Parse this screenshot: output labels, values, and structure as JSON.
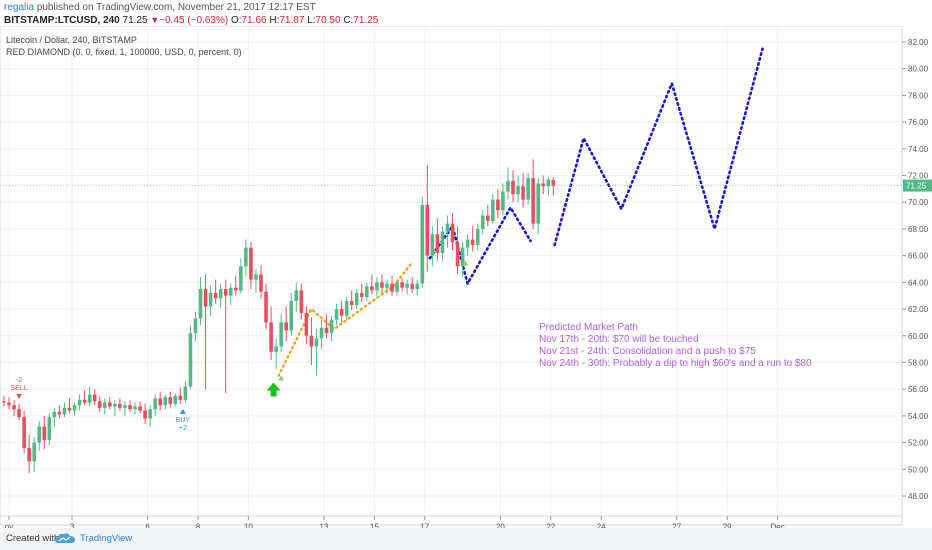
{
  "header": {
    "username": "regalia",
    "published_text": "published on TradingView.com, November 21, 2017 12:17 EST"
  },
  "ticker": {
    "symbol": "BITSTAMP:LTCUSD, 240",
    "last": "71.25",
    "change": "−0.45 (−0.63%)",
    "o_label": "O:",
    "o": "71.66",
    "h_label": "H:",
    "h": "71.87",
    "l_label": "L:",
    "l": "70.50",
    "c_label": "C:",
    "c": "71.25"
  },
  "chart_data": {
    "type": "candlestick",
    "title": "Litecoin / Dollar, 240, BITSTAMP",
    "indicator": "RED DIAMOND (0, 0, fixed, 1, 100000, USD, 0, percent, 0)",
    "ylim": [
      46.5,
      83.2
    ],
    "y_ticks": [
      "48.00",
      "50.00",
      "52.00",
      "54.00",
      "56.00",
      "58.00",
      "60.00",
      "62.00",
      "64.00",
      "66.00",
      "68.00",
      "70.00",
      "72.00",
      "74.00",
      "76.00",
      "78.00",
      "80.00",
      "82.00"
    ],
    "x_ticks": [
      "ov",
      "3",
      "6",
      "8",
      "10",
      "13",
      "15",
      "17",
      "20",
      "22",
      "24",
      "27",
      "29",
      "Dec"
    ],
    "x_tick_day": [
      0.5,
      3,
      6,
      8,
      10,
      13,
      15,
      17,
      20,
      22,
      24,
      27,
      29,
      31
    ],
    "candles": [
      {
        "d": 0.3,
        "o": 55.1,
        "h": 55.5,
        "l": 54.7,
        "c": 55.0
      },
      {
        "d": 0.5,
        "o": 55.0,
        "h": 55.4,
        "l": 54.5,
        "c": 54.8
      },
      {
        "d": 0.7,
        "o": 54.8,
        "h": 55.2,
        "l": 54.0,
        "c": 54.5
      },
      {
        "d": 0.9,
        "o": 54.5,
        "h": 54.9,
        "l": 53.7,
        "c": 53.9
      },
      {
        "d": 1.1,
        "o": 53.9,
        "h": 54.4,
        "l": 51.2,
        "c": 51.6
      },
      {
        "d": 1.3,
        "o": 51.6,
        "h": 52.6,
        "l": 49.7,
        "c": 50.6
      },
      {
        "d": 1.5,
        "o": 50.6,
        "h": 52.4,
        "l": 49.8,
        "c": 52.0
      },
      {
        "d": 1.7,
        "o": 52.0,
        "h": 53.6,
        "l": 51.4,
        "c": 53.2
      },
      {
        "d": 1.9,
        "o": 53.2,
        "h": 54.0,
        "l": 51.5,
        "c": 52.2
      },
      {
        "d": 2.1,
        "o": 52.2,
        "h": 54.2,
        "l": 51.8,
        "c": 53.9
      },
      {
        "d": 2.3,
        "o": 53.9,
        "h": 54.6,
        "l": 53.2,
        "c": 54.3
      },
      {
        "d": 2.5,
        "o": 54.3,
        "h": 54.8,
        "l": 53.8,
        "c": 54.1
      },
      {
        "d": 2.7,
        "o": 54.1,
        "h": 55.0,
        "l": 53.9,
        "c": 54.6
      },
      {
        "d": 2.9,
        "o": 54.6,
        "h": 55.3,
        "l": 54.2,
        "c": 54.4
      },
      {
        "d": 3.1,
        "o": 54.4,
        "h": 55.0,
        "l": 54.0,
        "c": 54.8
      },
      {
        "d": 3.3,
        "o": 54.8,
        "h": 55.6,
        "l": 54.4,
        "c": 55.2
      },
      {
        "d": 3.5,
        "o": 55.2,
        "h": 55.9,
        "l": 54.8,
        "c": 55.0
      },
      {
        "d": 3.7,
        "o": 55.0,
        "h": 56.2,
        "l": 54.7,
        "c": 55.6
      },
      {
        "d": 3.9,
        "o": 55.6,
        "h": 56.0,
        "l": 54.8,
        "c": 55.1
      },
      {
        "d": 4.1,
        "o": 55.1,
        "h": 55.5,
        "l": 54.3,
        "c": 54.6
      },
      {
        "d": 4.3,
        "o": 54.6,
        "h": 55.3,
        "l": 54.1,
        "c": 55.0
      },
      {
        "d": 4.5,
        "o": 55.0,
        "h": 55.4,
        "l": 54.5,
        "c": 54.7
      },
      {
        "d": 4.7,
        "o": 54.7,
        "h": 55.2,
        "l": 54.0,
        "c": 54.9
      },
      {
        "d": 4.9,
        "o": 54.9,
        "h": 55.3,
        "l": 54.4,
        "c": 54.6
      },
      {
        "d": 5.1,
        "o": 54.6,
        "h": 55.1,
        "l": 54.0,
        "c": 54.8
      },
      {
        "d": 5.3,
        "o": 54.8,
        "h": 55.2,
        "l": 54.3,
        "c": 54.5
      },
      {
        "d": 5.5,
        "o": 54.5,
        "h": 55.0,
        "l": 54.1,
        "c": 54.7
      },
      {
        "d": 5.7,
        "o": 54.7,
        "h": 55.1,
        "l": 54.2,
        "c": 54.4
      },
      {
        "d": 5.9,
        "o": 54.4,
        "h": 54.9,
        "l": 53.4,
        "c": 53.8
      },
      {
        "d": 6.1,
        "o": 53.8,
        "h": 54.8,
        "l": 53.2,
        "c": 54.5
      },
      {
        "d": 6.3,
        "o": 54.5,
        "h": 55.6,
        "l": 54.0,
        "c": 55.3
      },
      {
        "d": 6.5,
        "o": 55.3,
        "h": 55.8,
        "l": 54.4,
        "c": 54.8
      },
      {
        "d": 6.7,
        "o": 54.8,
        "h": 55.6,
        "l": 54.5,
        "c": 55.4
      },
      {
        "d": 6.9,
        "o": 55.4,
        "h": 55.8,
        "l": 54.6,
        "c": 54.9
      },
      {
        "d": 7.1,
        "o": 54.9,
        "h": 55.7,
        "l": 54.7,
        "c": 55.5
      },
      {
        "d": 7.3,
        "o": 55.5,
        "h": 56.1,
        "l": 54.9,
        "c": 55.2
      },
      {
        "d": 7.5,
        "o": 55.2,
        "h": 56.6,
        "l": 55.0,
        "c": 56.2
      },
      {
        "d": 7.7,
        "o": 56.2,
        "h": 60.8,
        "l": 56.0,
        "c": 60.2
      },
      {
        "d": 7.9,
        "o": 60.2,
        "h": 61.8,
        "l": 59.6,
        "c": 61.3
      },
      {
        "d": 8.1,
        "o": 61.3,
        "h": 64.4,
        "l": 60.8,
        "c": 63.5
      },
      {
        "d": 8.3,
        "o": 63.5,
        "h": 64.6,
        "l": 56.0,
        "c": 62.2
      },
      {
        "d": 8.5,
        "o": 62.2,
        "h": 63.8,
        "l": 61.5,
        "c": 63.2
      },
      {
        "d": 8.7,
        "o": 63.2,
        "h": 64.2,
        "l": 62.4,
        "c": 62.8
      },
      {
        "d": 8.9,
        "o": 62.8,
        "h": 63.9,
        "l": 62.1,
        "c": 63.5
      },
      {
        "d": 9.1,
        "o": 63.5,
        "h": 64.2,
        "l": 55.7,
        "c": 63.0
      },
      {
        "d": 9.3,
        "o": 63.0,
        "h": 63.9,
        "l": 62.3,
        "c": 63.6
      },
      {
        "d": 9.5,
        "o": 63.6,
        "h": 64.5,
        "l": 63.0,
        "c": 63.4
      },
      {
        "d": 9.7,
        "o": 63.4,
        "h": 65.8,
        "l": 63.2,
        "c": 65.2
      },
      {
        "d": 9.9,
        "o": 65.2,
        "h": 67.2,
        "l": 64.5,
        "c": 66.6
      },
      {
        "d": 10.1,
        "o": 66.6,
        "h": 67.0,
        "l": 63.5,
        "c": 64.2
      },
      {
        "d": 10.3,
        "o": 64.2,
        "h": 65.0,
        "l": 63.2,
        "c": 64.6
      },
      {
        "d": 10.5,
        "o": 64.6,
        "h": 65.3,
        "l": 62.8,
        "c": 63.3
      },
      {
        "d": 10.7,
        "o": 63.3,
        "h": 63.9,
        "l": 60.5,
        "c": 61.0
      },
      {
        "d": 10.9,
        "o": 61.0,
        "h": 62.2,
        "l": 58.2,
        "c": 58.8
      },
      {
        "d": 11.1,
        "o": 58.8,
        "h": 59.8,
        "l": 57.5,
        "c": 59.2
      },
      {
        "d": 11.3,
        "o": 59.2,
        "h": 61.6,
        "l": 58.8,
        "c": 61.0
      },
      {
        "d": 11.5,
        "o": 61.0,
        "h": 62.2,
        "l": 59.6,
        "c": 60.4
      },
      {
        "d": 11.7,
        "o": 60.4,
        "h": 63.2,
        "l": 60.0,
        "c": 62.6
      },
      {
        "d": 11.9,
        "o": 62.6,
        "h": 64.0,
        "l": 61.8,
        "c": 63.4
      },
      {
        "d": 12.1,
        "o": 63.4,
        "h": 63.9,
        "l": 61.2,
        "c": 61.7
      },
      {
        "d": 12.3,
        "o": 61.7,
        "h": 62.2,
        "l": 59.4,
        "c": 60.0
      },
      {
        "d": 12.5,
        "o": 60.0,
        "h": 61.4,
        "l": 57.8,
        "c": 59.2
      },
      {
        "d": 12.7,
        "o": 59.2,
        "h": 60.5,
        "l": 57.0,
        "c": 59.8
      },
      {
        "d": 12.9,
        "o": 59.8,
        "h": 61.2,
        "l": 59.0,
        "c": 60.6
      },
      {
        "d": 13.1,
        "o": 60.6,
        "h": 61.6,
        "l": 59.8,
        "c": 60.2
      },
      {
        "d": 13.3,
        "o": 60.2,
        "h": 61.5,
        "l": 59.6,
        "c": 61.2
      },
      {
        "d": 13.5,
        "o": 61.2,
        "h": 62.4,
        "l": 60.8,
        "c": 62.0
      },
      {
        "d": 13.7,
        "o": 62.0,
        "h": 62.6,
        "l": 61.0,
        "c": 61.5
      },
      {
        "d": 13.9,
        "o": 61.5,
        "h": 62.9,
        "l": 61.2,
        "c": 62.6
      },
      {
        "d": 14.1,
        "o": 62.6,
        "h": 63.4,
        "l": 61.9,
        "c": 62.3
      },
      {
        "d": 14.3,
        "o": 62.3,
        "h": 63.5,
        "l": 62.0,
        "c": 63.2
      },
      {
        "d": 14.5,
        "o": 63.2,
        "h": 63.9,
        "l": 62.5,
        "c": 62.9
      },
      {
        "d": 14.7,
        "o": 62.9,
        "h": 64.0,
        "l": 62.6,
        "c": 63.7
      },
      {
        "d": 14.9,
        "o": 63.7,
        "h": 64.6,
        "l": 63.1,
        "c": 63.4
      },
      {
        "d": 15.1,
        "o": 63.4,
        "h": 64.4,
        "l": 63.0,
        "c": 64.0
      },
      {
        "d": 15.3,
        "o": 64.0,
        "h": 64.6,
        "l": 63.2,
        "c": 63.6
      },
      {
        "d": 15.5,
        "o": 63.6,
        "h": 64.2,
        "l": 63.1,
        "c": 63.9
      },
      {
        "d": 15.7,
        "o": 63.9,
        "h": 64.5,
        "l": 63.0,
        "c": 63.3
      },
      {
        "d": 15.9,
        "o": 63.3,
        "h": 64.2,
        "l": 63.0,
        "c": 64.0
      },
      {
        "d": 16.1,
        "o": 64.0,
        "h": 64.3,
        "l": 63.3,
        "c": 63.6
      },
      {
        "d": 16.3,
        "o": 63.6,
        "h": 64.2,
        "l": 63.1,
        "c": 63.9
      },
      {
        "d": 16.5,
        "o": 63.9,
        "h": 64.4,
        "l": 63.2,
        "c": 63.5
      },
      {
        "d": 16.7,
        "o": 63.5,
        "h": 64.2,
        "l": 63.0,
        "c": 63.9
      },
      {
        "d": 16.9,
        "o": 63.9,
        "h": 70.4,
        "l": 63.6,
        "c": 69.8
      },
      {
        "d": 17.1,
        "o": 69.8,
        "h": 72.8,
        "l": 64.8,
        "c": 66.0
      },
      {
        "d": 17.3,
        "o": 66.0,
        "h": 68.2,
        "l": 65.2,
        "c": 67.6
      },
      {
        "d": 17.5,
        "o": 67.6,
        "h": 68.8,
        "l": 65.6,
        "c": 66.2
      },
      {
        "d": 17.7,
        "o": 66.2,
        "h": 68.2,
        "l": 65.6,
        "c": 67.8
      },
      {
        "d": 17.9,
        "o": 67.8,
        "h": 69.0,
        "l": 66.6,
        "c": 68.4
      },
      {
        "d": 18.1,
        "o": 68.4,
        "h": 69.2,
        "l": 66.4,
        "c": 67.0
      },
      {
        "d": 18.3,
        "o": 67.0,
        "h": 68.2,
        "l": 64.6,
        "c": 65.2
      },
      {
        "d": 18.5,
        "o": 65.2,
        "h": 67.0,
        "l": 64.4,
        "c": 66.6
      },
      {
        "d": 18.7,
        "o": 66.6,
        "h": 67.6,
        "l": 66.0,
        "c": 67.2
      },
      {
        "d": 18.9,
        "o": 67.2,
        "h": 68.2,
        "l": 66.3,
        "c": 66.8
      },
      {
        "d": 19.1,
        "o": 66.8,
        "h": 68.4,
        "l": 66.4,
        "c": 68.0
      },
      {
        "d": 19.3,
        "o": 68.0,
        "h": 69.4,
        "l": 67.6,
        "c": 69.0
      },
      {
        "d": 19.5,
        "o": 69.0,
        "h": 69.8,
        "l": 68.2,
        "c": 68.6
      },
      {
        "d": 19.7,
        "o": 68.6,
        "h": 70.6,
        "l": 68.4,
        "c": 70.2
      },
      {
        "d": 19.9,
        "o": 70.2,
        "h": 71.0,
        "l": 68.8,
        "c": 69.4
      },
      {
        "d": 20.1,
        "o": 69.4,
        "h": 71.4,
        "l": 69.0,
        "c": 70.8
      },
      {
        "d": 20.3,
        "o": 70.8,
        "h": 72.6,
        "l": 70.2,
        "c": 71.6
      },
      {
        "d": 20.5,
        "o": 71.6,
        "h": 72.4,
        "l": 70.0,
        "c": 70.6
      },
      {
        "d": 20.7,
        "o": 70.6,
        "h": 72.0,
        "l": 70.0,
        "c": 71.2
      },
      {
        "d": 20.9,
        "o": 71.2,
        "h": 72.2,
        "l": 69.6,
        "c": 70.2
      },
      {
        "d": 21.1,
        "o": 70.2,
        "h": 72.2,
        "l": 69.8,
        "c": 71.8
      },
      {
        "d": 21.3,
        "o": 71.8,
        "h": 73.2,
        "l": 68.0,
        "c": 68.4
      },
      {
        "d": 21.5,
        "o": 68.4,
        "h": 71.8,
        "l": 67.6,
        "c": 71.4
      },
      {
        "d": 21.7,
        "o": 71.4,
        "h": 72.0,
        "l": 70.6,
        "c": 71.2
      },
      {
        "d": 21.9,
        "o": 71.2,
        "h": 71.9,
        "l": 70.5,
        "c": 71.7
      },
      {
        "d": 22.1,
        "o": 71.66,
        "h": 71.87,
        "l": 70.5,
        "c": 71.25
      }
    ],
    "predicted_path": [
      {
        "d": 22.15,
        "y": 66.8
      },
      {
        "d": 23.3,
        "y": 74.8
      },
      {
        "d": 24.8,
        "y": 69.5
      },
      {
        "d": 26.8,
        "y": 78.9
      },
      {
        "d": 28.5,
        "y": 68.0
      },
      {
        "d": 30.4,
        "y": 81.5
      }
    ],
    "early_path": [
      {
        "d": 17.2,
        "y": 65.8
      },
      {
        "d": 18.1,
        "y": 68.2
      },
      {
        "d": 18.7,
        "y": 63.9
      },
      {
        "d": 20.4,
        "y": 69.6
      },
      {
        "d": 21.2,
        "y": 67.1
      }
    ],
    "orange_path": [
      {
        "d": 11.2,
        "y": 57.0
      },
      {
        "d": 12.5,
        "y": 62.0
      },
      {
        "d": 13.4,
        "y": 60.5
      },
      {
        "d": 15.8,
        "y": 63.8
      },
      {
        "d": 16.5,
        "y": 65.5
      }
    ],
    "signals": {
      "sell_day": 0.9,
      "sell_price": 55.2,
      "sell_top": "-2",
      "sell_label": "SELL",
      "buy_day": 7.4,
      "buy_price": 54.6,
      "buy_label": "BUY",
      "buy_bottom": "+2",
      "green_arrow_day": 11.0,
      "green_arrow_price": 56.5,
      "green_markers": [
        {
          "d": 11.3,
          "y": 56.8
        },
        {
          "d": 18.6,
          "y": 65.4
        }
      ]
    },
    "annotation": {
      "lines": [
        "Predicted Market Path",
        "Nov 17th - 20th: $70 will be touched",
        "Nov 21st - 24th: Consolidation and a push to $75",
        "Nov 24th - 30th: Probably a dip to high $60's and a run to $80"
      ]
    },
    "current_price_label": "71.25"
  },
  "colors": {
    "up": "#53b987",
    "down": "#eb4d5c",
    "predicted": "#1a18c8",
    "orange": "#f39c12",
    "annotation": "#b05fd6",
    "current": "#53b987"
  },
  "footer": {
    "created_with": "Created with",
    "brand": "TradingView"
  }
}
